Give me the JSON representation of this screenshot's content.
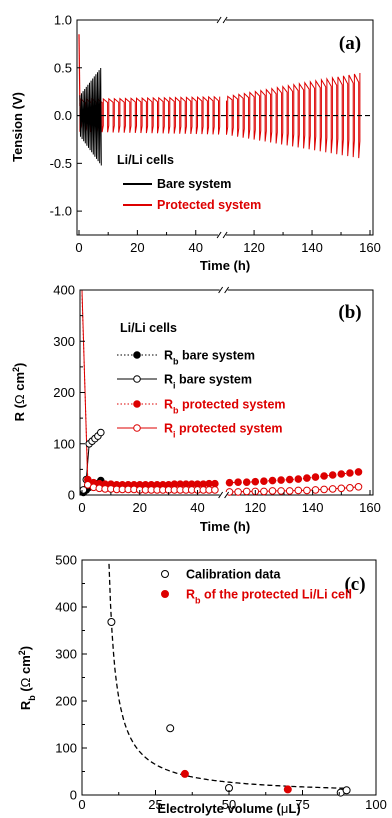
{
  "chart_data": [
    {
      "type": "line",
      "panel_label": "(a)",
      "xlabel": "Time (h)",
      "ylabel": "Tension (V)",
      "x_ticks": [
        "0",
        "20",
        "40",
        "120",
        "140",
        "160"
      ],
      "y_ticks": [
        "1.0",
        "0.5",
        "0.0",
        "-0.5",
        "-1.0"
      ],
      "ylim": [
        -1.25,
        1.0
      ],
      "x_axis_break": [
        48,
        110
      ],
      "legend_title": "Li/Li cells",
      "legend_placement": "lower-left",
      "series": [
        {
          "name": "Bare system",
          "color": "#000000",
          "x_range": [
            0,
            7.5
          ],
          "amplitude_start": 0.2,
          "amplitude_end": 0.5
        },
        {
          "name": "Protected system",
          "color": "#dd0000",
          "x_range": [
            0,
            157
          ],
          "amplitude_start": 0.17,
          "amplitude_end": 0.45
        }
      ],
      "reference_line": {
        "y": 0.0,
        "style": "dashed"
      }
    },
    {
      "type": "scatter",
      "panel_label": "(b)",
      "xlabel": "Time (h)",
      "ylabel": "R (Ω cm²)",
      "ylabel_parts": {
        "main": "R (",
        "omega": "Ω",
        "unit": " cm",
        "sup": "2",
        "close": ")"
      },
      "x_ticks": [
        "0",
        "20",
        "40",
        "120",
        "140",
        "160"
      ],
      "y_ticks": [
        "0",
        "100",
        "200",
        "300",
        "400"
      ],
      "ylim": [
        0,
        400
      ],
      "x_axis_break": [
        48,
        110
      ],
      "legend_title": "Li/Li cells",
      "legend_placement": "upper-left",
      "series": [
        {
          "name": "Rb bare system",
          "label_main": "R",
          "label_sub": "b",
          "label_rest": " bare system",
          "color": "#000000",
          "filled": true,
          "x": [
            0.5,
            1.5,
            2.5,
            3.5,
            4.5,
            5.5,
            6.5
          ],
          "y": [
            5,
            10,
            15,
            18,
            20,
            22,
            28
          ]
        },
        {
          "name": "Ri bare system",
          "label_main": "R",
          "label_sub": "i",
          "label_rest": " bare system",
          "color": "#000000",
          "filled": false,
          "x": [
            0.5,
            1.5,
            2.5,
            3.5,
            4.5,
            5.5,
            6.5
          ],
          "y": [
            10,
            30,
            100,
            105,
            110,
            115,
            122
          ]
        },
        {
          "name": "Rb protected system",
          "label_main": "R",
          "label_sub": "b",
          "label_rest": " protected system",
          "color": "#dd0000",
          "filled": true,
          "x": [
            0,
            2,
            4,
            6,
            8,
            10,
            12,
            14,
            16,
            18,
            20,
            22,
            24,
            26,
            28,
            30,
            32,
            34,
            36,
            38,
            40,
            42,
            44,
            46,
            111,
            114,
            117,
            120,
            123,
            126,
            129,
            132,
            135,
            138,
            141,
            144,
            147,
            150,
            153,
            156
          ],
          "y": [
            390,
            30,
            24,
            22,
            21,
            21,
            20,
            20,
            20,
            20,
            20,
            20,
            20,
            20,
            20,
            20,
            21,
            21,
            21,
            21,
            21,
            21,
            22,
            22,
            24,
            25,
            25,
            26,
            27,
            28,
            29,
            30,
            31,
            33,
            35,
            37,
            39,
            41,
            43,
            45
          ]
        },
        {
          "name": "Ri protected system",
          "label_main": "R",
          "label_sub": "i",
          "label_rest": " protected system",
          "color": "#dd0000",
          "filled": false,
          "x": [
            0,
            2,
            4,
            6,
            8,
            10,
            12,
            14,
            16,
            18,
            20,
            22,
            24,
            26,
            28,
            30,
            32,
            34,
            36,
            38,
            40,
            42,
            44,
            46,
            111,
            114,
            117,
            120,
            123,
            126,
            129,
            132,
            135,
            138,
            141,
            144,
            147,
            150,
            153,
            156
          ],
          "y": [
            400,
            20,
            15,
            13,
            12,
            12,
            11,
            11,
            11,
            11,
            10,
            10,
            10,
            10,
            10,
            10,
            10,
            10,
            10,
            10,
            10,
            10,
            10,
            10,
            6,
            6,
            7,
            7,
            7,
            8,
            8,
            8,
            9,
            9,
            10,
            11,
            12,
            13,
            14,
            16
          ]
        }
      ]
    },
    {
      "type": "scatter",
      "panel_label": "(c)",
      "xlabel": "Electrolyte volume (μL)",
      "xlabel_parts": {
        "main": "Electrolyte volume (",
        "mu": "μ",
        "rest": "L)"
      },
      "ylabel": "Rb (Ω cm²)",
      "ylabel_parts": {
        "main": "R",
        "sub": "b",
        "open": " (",
        "omega": "Ω",
        "unit": " cm",
        "sup": "2",
        "close": ")"
      },
      "x_ticks": [
        "0",
        "25",
        "50",
        "75",
        "100"
      ],
      "y_ticks": [
        "0",
        "100",
        "200",
        "300",
        "400",
        "500"
      ],
      "xlim": [
        0,
        100
      ],
      "ylim": [
        0,
        500
      ],
      "legend_placement": "upper-right",
      "series": [
        {
          "name": "Calibration data",
          "label_main": "Calibration data",
          "color": "#000000",
          "filled": false,
          "x": [
            10,
            30,
            50,
            88,
            90
          ],
          "y": [
            368,
            142,
            15,
            5,
            10
          ]
        },
        {
          "name": "Rb of the protected Li/Li cell",
          "label_main": "R",
          "label_sub": "b",
          "label_rest": " of the protected Li/Li cell",
          "color": "#dd0000",
          "filled": true,
          "x": [
            35,
            70
          ],
          "y": [
            45,
            12
          ]
        }
      ],
      "fit_curve": {
        "style": "dashed",
        "color": "#000000",
        "form": "y = a / (x - b)",
        "a": 1180,
        "b": 6.8,
        "x_range": [
          9.2,
          90
        ]
      }
    }
  ]
}
